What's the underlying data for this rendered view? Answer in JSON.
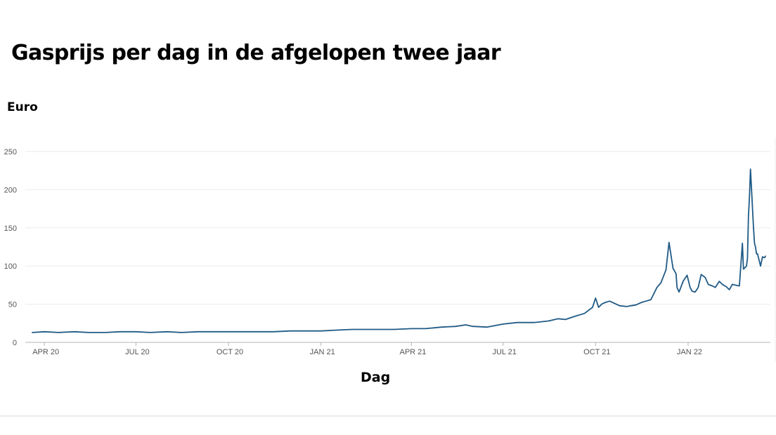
{
  "chart_data": {
    "type": "line",
    "title": "Gasprijs per dag in de afgelopen twee jaar",
    "ylabel": "Euro",
    "xlabel": "Dag",
    "ylim": [
      0,
      250
    ],
    "yticks": [
      0,
      50,
      100,
      150,
      200,
      250
    ],
    "xlim": [
      "2020-03-20",
      "2022-03-21"
    ],
    "xticks": [
      {
        "date": "2020-04-01",
        "label": "APR 20"
      },
      {
        "date": "2020-07-01",
        "label": "JUL 20"
      },
      {
        "date": "2020-10-01",
        "label": "OCT 20"
      },
      {
        "date": "2021-01-01",
        "label": "JAN 21"
      },
      {
        "date": "2021-04-01",
        "label": "APR 21"
      },
      {
        "date": "2021-07-01",
        "label": "JUL 21"
      },
      {
        "date": "2021-10-01",
        "label": "OCT 21"
      },
      {
        "date": "2022-01-01",
        "label": "JAN 22"
      }
    ],
    "grid": true,
    "color": "#1f5a85",
    "series": [
      {
        "x": [
          "2020-03-20",
          "2020-04-01",
          "2020-04-15",
          "2020-05-01",
          "2020-05-15",
          "2020-06-01",
          "2020-06-15",
          "2020-07-01",
          "2020-07-15",
          "2020-08-01",
          "2020-08-15",
          "2020-09-01",
          "2020-09-15",
          "2020-10-01",
          "2020-10-15",
          "2020-11-01",
          "2020-11-15",
          "2020-12-01",
          "2020-12-15",
          "2021-01-01",
          "2021-01-15",
          "2021-02-01",
          "2021-02-15",
          "2021-03-01",
          "2021-03-15",
          "2021-04-01",
          "2021-04-15",
          "2021-05-01",
          "2021-05-15",
          "2021-05-25",
          "2021-06-01",
          "2021-06-15",
          "2021-07-01",
          "2021-07-15",
          "2021-08-01",
          "2021-08-15",
          "2021-08-25",
          "2021-09-01",
          "2021-09-10",
          "2021-09-20",
          "2021-09-28",
          "2021-10-01",
          "2021-10-04",
          "2021-10-07",
          "2021-10-10",
          "2021-10-15",
          "2021-10-25",
          "2021-11-01",
          "2021-11-05",
          "2021-11-10",
          "2021-11-15",
          "2021-11-20",
          "2021-11-25",
          "2021-12-01",
          "2021-12-05",
          "2021-12-10",
          "2021-12-13",
          "2021-12-17",
          "2021-12-20",
          "2021-12-21",
          "2021-12-23",
          "2021-12-27",
          "2021-12-31",
          "2022-01-03",
          "2022-01-05",
          "2022-01-08",
          "2022-01-11",
          "2022-01-14",
          "2022-01-18",
          "2022-01-21",
          "2022-01-25",
          "2022-01-28",
          "2022-02-01",
          "2022-02-04",
          "2022-02-08",
          "2022-02-11",
          "2022-02-14",
          "2022-02-17",
          "2022-02-21",
          "2022-02-24",
          "2022-02-25",
          "2022-02-28",
          "2022-03-01",
          "2022-03-02",
          "2022-03-03",
          "2022-03-04",
          "2022-03-07",
          "2022-03-08",
          "2022-03-09",
          "2022-03-10",
          "2022-03-11",
          "2022-03-14",
          "2022-03-16",
          "2022-03-18",
          "2022-03-19"
        ],
        "y": [
          13,
          14,
          13,
          14,
          13,
          13,
          14,
          14,
          13,
          14,
          13,
          14,
          14,
          14,
          14,
          14,
          14,
          15,
          15,
          15,
          16,
          17,
          17,
          17,
          17,
          18,
          18,
          20,
          21,
          23,
          21,
          20,
          24,
          26,
          26,
          28,
          31,
          30,
          34,
          38,
          46,
          58,
          46,
          50,
          52,
          54,
          48,
          47,
          48,
          49,
          52,
          54,
          56,
          72,
          78,
          95,
          131,
          97,
          90,
          72,
          66,
          80,
          88,
          72,
          67,
          66,
          72,
          89,
          85,
          76,
          74,
          72,
          80,
          76,
          73,
          69,
          76,
          75,
          74,
          130,
          96,
          100,
          110,
          165,
          190,
          227,
          150,
          130,
          125,
          116,
          116,
          100,
          112,
          111,
          113
        ]
      }
    ]
  }
}
